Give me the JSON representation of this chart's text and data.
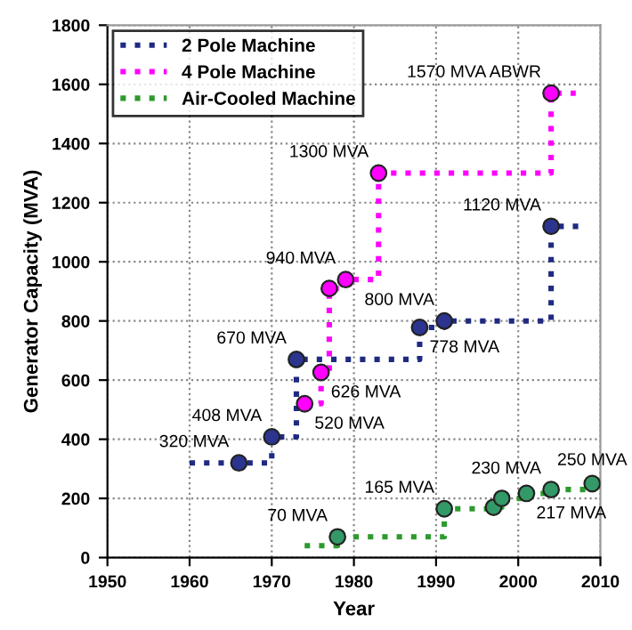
{
  "chart_data": {
    "type": "step",
    "xlabel": "Year",
    "ylabel": "Generator Capacity (MVA)",
    "xlim": [
      1950,
      2010
    ],
    "xticks": [
      1950,
      1960,
      1970,
      1980,
      1990,
      2000,
      2010
    ],
    "ylim": [
      0,
      1800
    ],
    "yticks": [
      0,
      200,
      400,
      600,
      800,
      1000,
      1200,
      1400,
      1600,
      1800
    ],
    "grid": true,
    "legend": "top left",
    "line_style": "dotted",
    "series": [
      {
        "name": "2 Pole Machine",
        "color": "#1f2a80",
        "x": [
          1960,
          1970,
          1973,
          1988,
          1991,
          2004,
          2008
        ],
        "values": [
          320,
          408,
          670,
          778,
          800,
          1120,
          1120
        ]
      },
      {
        "name": "4 Pole Machine",
        "color": "#ff00ff",
        "x": [
          1974,
          1976,
          1977,
          1979,
          1983,
          2004,
          2007
        ],
        "values": [
          520,
          626,
          910,
          940,
          1300,
          1570,
          1570
        ]
      },
      {
        "name": "Air-Cooled Machine",
        "color": "#2e9a2e",
        "x": [
          1974,
          1978,
          1991,
          1997,
          1998,
          2001,
          2004,
          2009
        ],
        "values": [
          40,
          70,
          165,
          170,
          200,
          217,
          230,
          250
        ]
      },
      {
        "type": "scatter",
        "marker": "circle",
        "color": "#2b3590",
        "x": [
          1966,
          1970,
          1973,
          1988,
          1991,
          2004
        ],
        "values": [
          320,
          408,
          670,
          778,
          800,
          1120
        ]
      },
      {
        "type": "scatter",
        "marker": "circle",
        "color": "#ff00ff",
        "x": [
          1974,
          1976,
          1977,
          1979,
          1983,
          2004
        ],
        "values": [
          520,
          626,
          910,
          940,
          1300,
          1570
        ]
      },
      {
        "type": "scatter",
        "marker": "circle",
        "color": "#339966",
        "x": [
          1978,
          1991,
          1997,
          1998,
          2001,
          2004,
          2009
        ],
        "values": [
          70,
          165,
          170,
          200,
          217,
          230,
          250
        ]
      }
    ],
    "annotations": [
      {
        "text": "320 MVA",
        "x": 1966,
        "y": 320
      },
      {
        "text": "408 MVA",
        "x": 1970,
        "y": 408
      },
      {
        "text": "670 MVA",
        "x": 1973,
        "y": 670
      },
      {
        "text": "520 MVA",
        "x": 1974,
        "y": 520
      },
      {
        "text": "626 MVA",
        "x": 1976,
        "y": 626
      },
      {
        "text": "800 MVA",
        "x": 1991,
        "y": 800
      },
      {
        "text": "778 MVA",
        "x": 1988,
        "y": 778
      },
      {
        "text": "165 MVA",
        "x": 1991,
        "y": 165
      },
      {
        "text": "70 MVA",
        "x": 1978,
        "y": 70
      },
      {
        "text": "230 MVA",
        "x": 2004,
        "y": 230
      },
      {
        "text": "217 MVA",
        "x": 2001,
        "y": 217
      },
      {
        "text": "250 MVA",
        "x": 2009,
        "y": 250
      },
      {
        "text": "1570 MVA ABWR",
        "x": 2004,
        "y": 1570
      },
      {
        "text": "1300 MVA",
        "x": 1983,
        "y": 1300
      },
      {
        "text": "1120 MVA",
        "x": 2004,
        "y": 1120
      },
      {
        "text": "940 MVA",
        "x": 1979,
        "y": 940
      }
    ]
  }
}
